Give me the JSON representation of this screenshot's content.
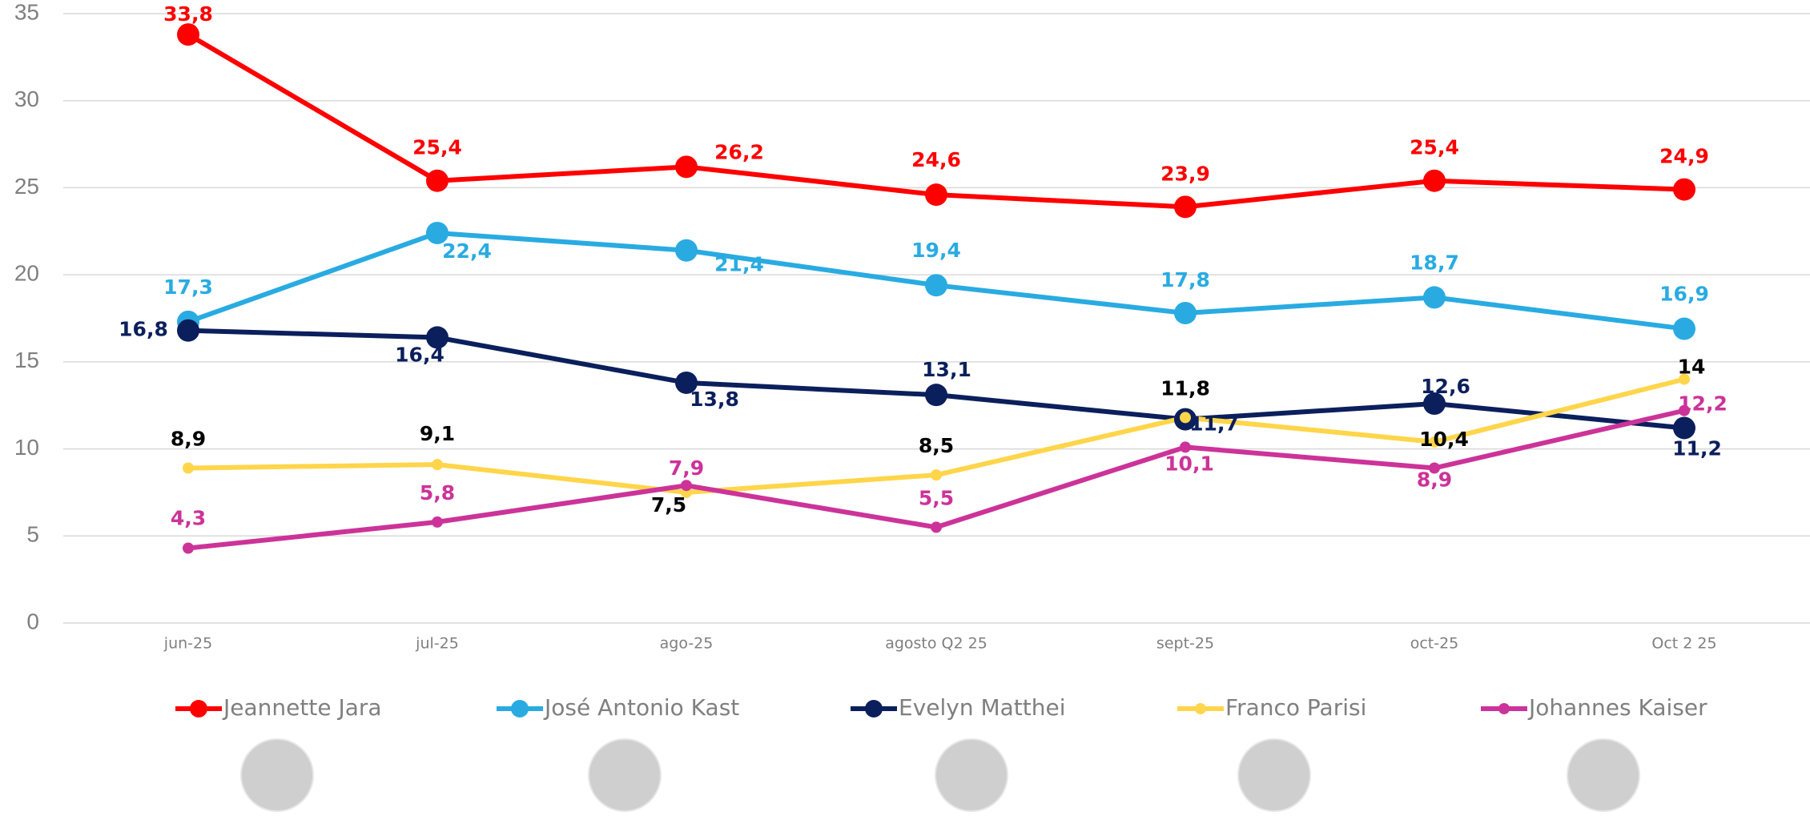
{
  "chart_data": {
    "type": "line",
    "categories": [
      "jun-25",
      "jul-25",
      "ago-25",
      "agosto Q2 25",
      "sept-25",
      "oct-25",
      "Oct 2 25"
    ],
    "ylim": [
      0,
      35
    ],
    "yticks": [
      0,
      5,
      10,
      15,
      20,
      25,
      30,
      35
    ],
    "grid": true,
    "series": [
      {
        "name": "Jeannette Jara",
        "color": "#ff0000",
        "values": [
          33.8,
          25.4,
          26.2,
          24.6,
          23.9,
          25.4,
          24.9
        ],
        "value_labels": [
          "33,8",
          "25,4",
          "26,2",
          "24,6",
          "23,9",
          "25,4",
          "24,9"
        ]
      },
      {
        "name": "José Antonio Kast",
        "color": "#29abe2",
        "values": [
          17.3,
          22.4,
          21.4,
          19.4,
          17.8,
          18.7,
          16.9
        ],
        "value_labels": [
          "17,3",
          "22,4",
          "21,4",
          "19,4",
          "17,8",
          "18,7",
          "16,9"
        ]
      },
      {
        "name": "Evelyn Matthei",
        "color": "#0b1f5c",
        "values": [
          16.8,
          16.4,
          13.8,
          13.1,
          11.7,
          12.6,
          11.2
        ],
        "value_labels": [
          "16,8",
          "16,4",
          "13,8",
          "13,1",
          "11,7",
          "12,6",
          "11,2"
        ]
      },
      {
        "name": "Franco Parisi",
        "color": "#ffd54a",
        "values": [
          8.9,
          9.1,
          7.5,
          8.5,
          11.8,
          10.4,
          14
        ],
        "value_labels": [
          "8,9",
          "9,1",
          "7,5",
          "8,5",
          "11,8",
          "10,4",
          "14"
        ]
      },
      {
        "name": "Johannes Kaiser",
        "color": "#cc3399",
        "values": [
          4.3,
          5.8,
          7.9,
          5.5,
          10.1,
          8.9,
          12.2
        ],
        "value_labels": [
          "4,3",
          "5,8",
          "7,9",
          "5,5",
          "10,1",
          "8,9",
          "12,2"
        ]
      }
    ]
  }
}
